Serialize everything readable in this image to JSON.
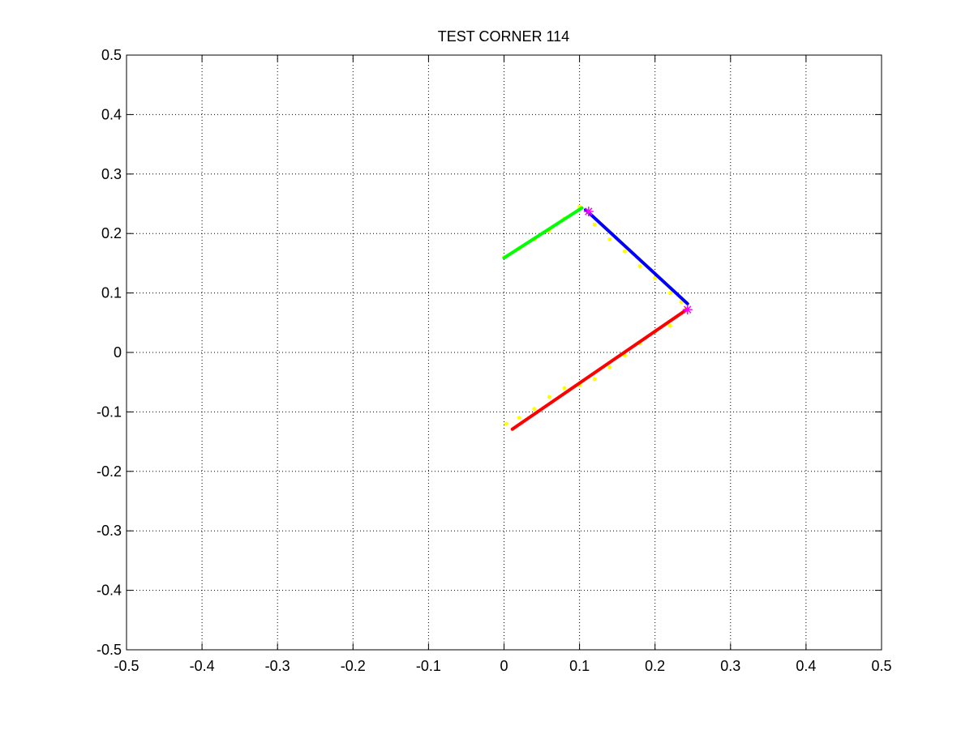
{
  "chart_data": {
    "type": "line",
    "title": "TEST CORNER 114",
    "xlabel": "",
    "ylabel": "",
    "xlim": [
      -0.5,
      0.5
    ],
    "ylim": [
      -0.5,
      0.5
    ],
    "xticks": [
      "-0.5",
      "-0.4",
      "-0.3",
      "-0.2",
      "-0.1",
      "0",
      "0.1",
      "0.2",
      "0.3",
      "0.4",
      "0.5"
    ],
    "yticks": [
      "-0.5",
      "-0.4",
      "-0.3",
      "-0.2",
      "-0.1",
      "0",
      "0.1",
      "0.2",
      "0.3",
      "0.4",
      "0.5"
    ],
    "grid": true,
    "scatter_points": {
      "color": "#ffff00",
      "x": [
        0.0,
        0.02,
        0.04,
        0.06,
        0.08,
        0.1,
        0.12,
        0.14,
        0.16,
        0.18,
        0.2,
        0.22,
        0.235,
        0.24,
        0.22,
        0.2,
        0.18,
        0.16,
        0.14,
        0.12,
        0.1,
        0.08,
        0.06,
        0.04,
        0.02,
        0.003
      ],
      "y": [
        0.16,
        0.175,
        0.19,
        0.205,
        0.225,
        0.245,
        0.215,
        0.19,
        0.17,
        0.145,
        0.125,
        0.1,
        0.085,
        0.072,
        0.045,
        0.035,
        0.015,
        -0.005,
        -0.025,
        -0.045,
        -0.055,
        -0.06,
        -0.075,
        -0.095,
        -0.11,
        -0.12
      ]
    },
    "series": [
      {
        "color": "#00ff00",
        "x": [
          0.0,
          0.103
        ],
        "y": [
          0.159,
          0.243
        ]
      },
      {
        "color": "#0000ff",
        "x": [
          0.108,
          0.243
        ],
        "y": [
          0.24,
          0.082
        ]
      },
      {
        "color": "#ff0000",
        "x": [
          0.011,
          0.243
        ],
        "y": [
          -0.129,
          0.073
        ]
      }
    ],
    "markers": {
      "symbol": "*",
      "color": "#ff00ff",
      "x": [
        0.112,
        0.243
      ],
      "y": [
        0.237,
        0.072
      ]
    }
  }
}
